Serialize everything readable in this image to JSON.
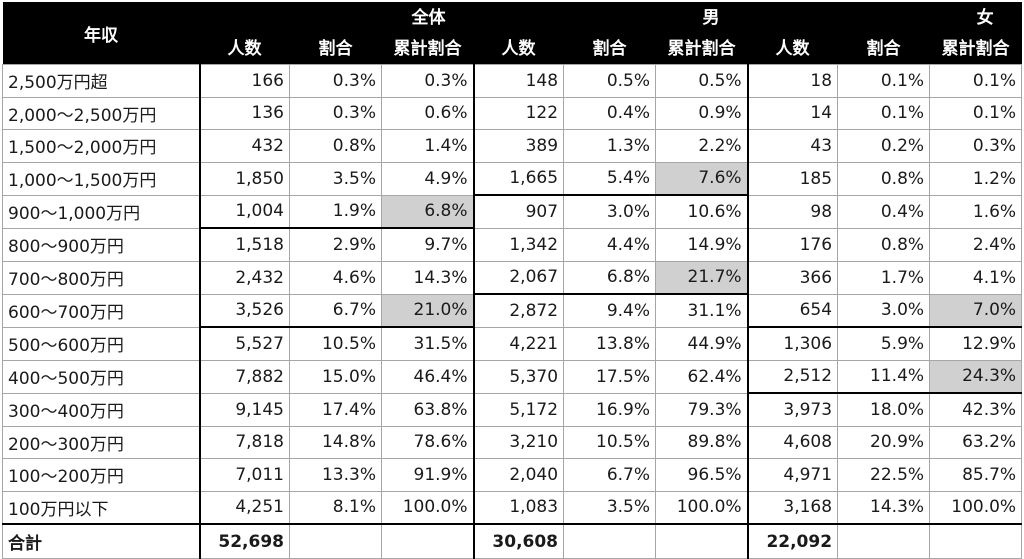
{
  "header": {
    "row_label": "年収",
    "groups": [
      "全体",
      "男",
      "女"
    ],
    "sub": [
      "人数",
      "割合",
      "累計割合"
    ]
  },
  "rows": [
    {
      "label": "2,500万円超",
      "v": [
        "166",
        "0.3%",
        "0.3%",
        "148",
        "0.5%",
        "0.5%",
        "18",
        "0.1%",
        "0.1%"
      ]
    },
    {
      "label": "2,000～2,500万円",
      "v": [
        "136",
        "0.3%",
        "0.6%",
        "122",
        "0.4%",
        "0.9%",
        "14",
        "0.1%",
        "0.1%"
      ]
    },
    {
      "label": "1,500～2,000万円",
      "v": [
        "432",
        "0.8%",
        "1.4%",
        "389",
        "1.3%",
        "2.2%",
        "43",
        "0.2%",
        "0.3%"
      ]
    },
    {
      "label": "1,000～1,500万円",
      "v": [
        "1,850",
        "3.5%",
        "4.9%",
        "1,665",
        "5.4%",
        "7.6%",
        "185",
        "0.8%",
        "1.2%"
      ]
    },
    {
      "label": "900～1,000万円",
      "v": [
        "1,004",
        "1.9%",
        "6.8%",
        "907",
        "3.0%",
        "10.6%",
        "98",
        "0.4%",
        "1.6%"
      ]
    },
    {
      "label": "800～900万円",
      "v": [
        "1,518",
        "2.9%",
        "9.7%",
        "1,342",
        "4.4%",
        "14.9%",
        "176",
        "0.8%",
        "2.4%"
      ]
    },
    {
      "label": "700～800万円",
      "v": [
        "2,432",
        "4.6%",
        "14.3%",
        "2,067",
        "6.8%",
        "21.7%",
        "366",
        "1.7%",
        "4.1%"
      ]
    },
    {
      "label": "600～700万円",
      "v": [
        "3,526",
        "6.7%",
        "21.0%",
        "2,872",
        "9.4%",
        "31.1%",
        "654",
        "3.0%",
        "7.0%"
      ]
    },
    {
      "label": "500～600万円",
      "v": [
        "5,527",
        "10.5%",
        "31.5%",
        "4,221",
        "13.8%",
        "44.9%",
        "1,306",
        "5.9%",
        "12.9%"
      ]
    },
    {
      "label": "400～500万円",
      "v": [
        "7,882",
        "15.0%",
        "46.4%",
        "5,370",
        "17.5%",
        "62.4%",
        "2,512",
        "11.4%",
        "24.3%"
      ]
    },
    {
      "label": "300～400万円",
      "v": [
        "9,145",
        "17.4%",
        "63.8%",
        "5,172",
        "16.9%",
        "79.3%",
        "3,973",
        "18.0%",
        "42.3%"
      ]
    },
    {
      "label": "200～300万円",
      "v": [
        "7,818",
        "14.8%",
        "78.6%",
        "3,210",
        "10.5%",
        "89.8%",
        "4,608",
        "20.9%",
        "63.2%"
      ]
    },
    {
      "label": "100～200万円",
      "v": [
        "7,011",
        "13.3%",
        "91.9%",
        "2,040",
        "6.7%",
        "96.5%",
        "4,971",
        "22.5%",
        "85.7%"
      ]
    },
    {
      "label": "100万円以下",
      "v": [
        "4,251",
        "8.1%",
        "100.0%",
        "1,083",
        "3.5%",
        "100.0%",
        "3,168",
        "14.3%",
        "100.0%"
      ]
    }
  ],
  "total": {
    "label": "合計",
    "v": [
      "52,698",
      "",
      "",
      "30,608",
      "",
      "",
      "22,092",
      "",
      ""
    ]
  },
  "highlight": [
    [
      4,
      2
    ],
    [
      7,
      2
    ],
    [
      3,
      5
    ],
    [
      6,
      5
    ],
    [
      7,
      8
    ],
    [
      9,
      8
    ]
  ]
}
